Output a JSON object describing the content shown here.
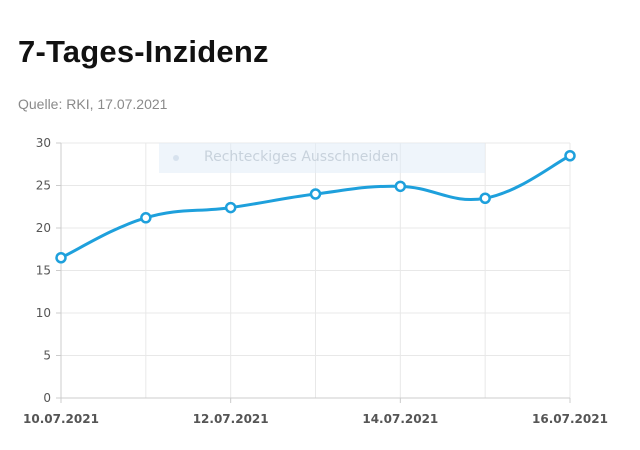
{
  "header": {
    "title": "7-Tages-Inzidenz",
    "source": "Quelle: RKI, 17.07.2021"
  },
  "tooltip_overlay": {
    "label": "Rechteckiges Ausschneiden",
    "icon": "dot-icon"
  },
  "colors": {
    "line": "#1ea0dc",
    "point_fill": "#ffffff",
    "grid": "#e8e8e8",
    "axis": "#cccccc"
  },
  "chart_data": {
    "type": "line",
    "title": "7-Tages-Inzidenz",
    "xlabel": "",
    "ylabel": "",
    "x": [
      "10.07.2021",
      "11.07.2021",
      "12.07.2021",
      "13.07.2021",
      "14.07.2021",
      "15.07.2021",
      "16.07.2021"
    ],
    "x_tick_labels": [
      "10.07.2021",
      "12.07.2021",
      "14.07.2021",
      "16.07.2021"
    ],
    "series": [
      {
        "values": [
          16.5,
          21.2,
          22.4,
          24.0,
          24.9,
          23.5,
          28.5
        ]
      }
    ],
    "ylim": [
      0,
      30
    ],
    "y_ticks": [
      0,
      5,
      10,
      15,
      20,
      25,
      30
    ],
    "grid": true,
    "smooth": true,
    "legend": "none"
  }
}
